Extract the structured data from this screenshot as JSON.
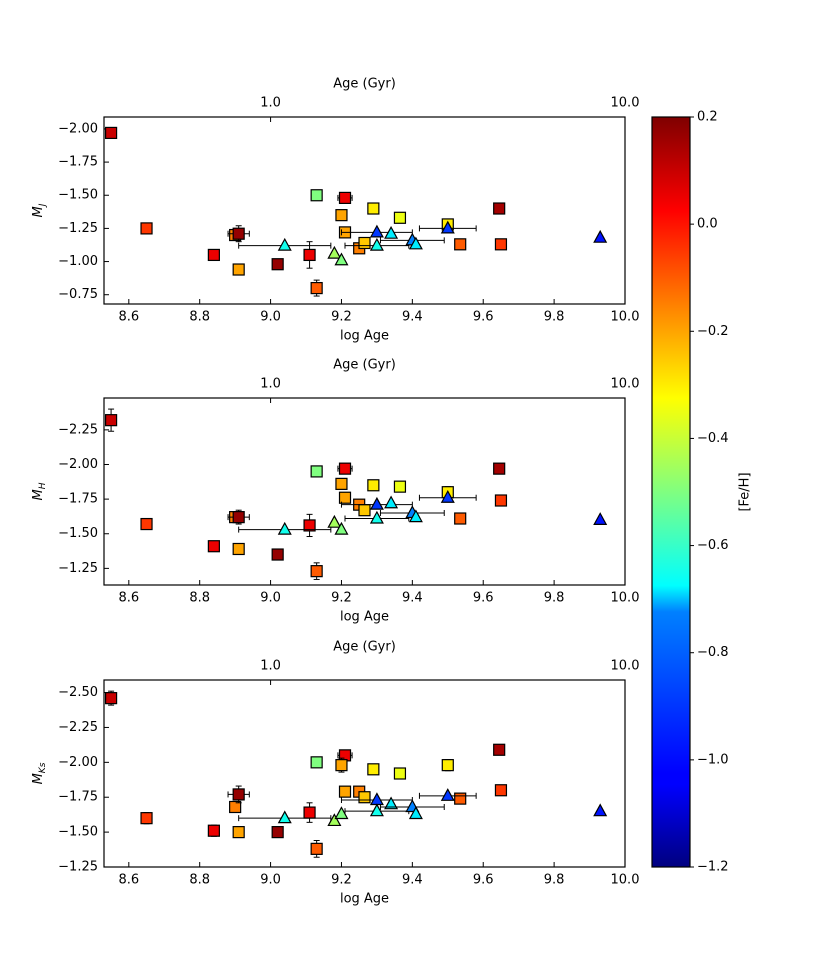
{
  "chart_data": [
    {
      "type": "scatter",
      "xlabel": "log Age",
      "ylabel": {
        "base": "M",
        "sub": "J"
      },
      "x2label": "Age (Gyr)",
      "x2ticks": [
        {
          "value": 1,
          "label": "1.0"
        },
        {
          "value": 10,
          "label": "10.0"
        }
      ],
      "xlim": [
        8.53,
        10.0
      ],
      "xticks": [
        8.6,
        8.8,
        {
          "value": 9,
          "label": "9.0"
        },
        9.2,
        9.4,
        9.6,
        9.8,
        {
          "value": 10,
          "label": "10.0"
        }
      ],
      "ylim": [
        -0.68,
        -2.09
      ],
      "yticks": [
        {
          "value": -2,
          "label": "−2.00"
        },
        {
          "value": -1.75,
          "label": "−1.75"
        },
        {
          "value": -1.5,
          "label": "−1.50"
        },
        {
          "value": -1.25,
          "label": "−1.25"
        },
        {
          "value": -1,
          "label": "−1.00"
        },
        {
          "value": -0.75,
          "label": "−0.75"
        }
      ],
      "series": [
        {
          "marker": "square",
          "x": [
            8.55,
            8.65,
            8.84,
            8.91,
            8.9,
            8.91,
            9.02,
            9.11,
            9.13,
            9.13,
            9.21,
            9.2,
            9.21,
            9.25,
            9.265,
            9.29,
            9.365,
            9.5,
            9.535,
            9.645,
            9.65
          ],
          "values": [
            -1.97,
            -1.25,
            -1.05,
            -0.94,
            -1.2,
            -1.21,
            -0.98,
            -1.05,
            -0.8,
            -1.5,
            -1.48,
            -1.35,
            -1.22,
            -1.1,
            -1.14,
            -1.4,
            -1.33,
            -1.28,
            -1.13,
            -1.4,
            -1.13
          ],
          "c": [
            0.1,
            -0.05,
            0.05,
            -0.2,
            -0.15,
            0.17,
            0.17,
            0.05,
            -0.1,
            -0.5,
            0.05,
            -0.2,
            -0.2,
            -0.15,
            -0.25,
            -0.3,
            -0.35,
            -0.3,
            -0.1,
            0.15,
            -0.05
          ],
          "yerr": [
            0.04,
            0.03,
            0.03,
            null,
            null,
            0.06,
            0.02,
            0.1,
            0.06,
            null,
            0.03,
            null,
            null,
            null,
            null,
            0.02,
            null,
            0.04,
            null,
            null,
            null
          ],
          "xerr": [
            null,
            null,
            null,
            null,
            null,
            0.03,
            null,
            null,
            null,
            null,
            0.02,
            null,
            null,
            null,
            null,
            null,
            null,
            null,
            null,
            null,
            null
          ]
        },
        {
          "marker": "triangle",
          "x": [
            9.04,
            9.18,
            9.2,
            9.3,
            9.3,
            9.34,
            9.4,
            9.41,
            9.5,
            9.93
          ],
          "values": [
            -1.12,
            -1.06,
            -1.01,
            -1.22,
            -1.12,
            -1.21,
            -1.16,
            -1.13,
            -1.25,
            -1.18
          ],
          "c": [
            -0.65,
            -0.45,
            -0.5,
            -0.95,
            -0.65,
            -0.7,
            -0.85,
            -0.7,
            -0.95,
            -1.0
          ],
          "yerr": [
            null,
            null,
            null,
            null,
            null,
            null,
            null,
            null,
            null,
            null
          ],
          "xerr": [
            0.13,
            null,
            null,
            0.1,
            0.09,
            null,
            0.09,
            null,
            0.08,
            null
          ]
        }
      ]
    },
    {
      "type": "scatter",
      "xlabel": "log Age",
      "ylabel": {
        "base": "M",
        "sub": "H"
      },
      "x2label": "Age (Gyr)",
      "x2ticks": [
        {
          "value": 1,
          "label": "1.0"
        },
        {
          "value": 10,
          "label": "10.0"
        }
      ],
      "xlim": [
        8.53,
        10.0
      ],
      "xticks": [
        8.6,
        8.8,
        {
          "value": 9,
          "label": "9.0"
        },
        9.2,
        9.4,
        9.6,
        9.8,
        {
          "value": 10,
          "label": "10.0"
        }
      ],
      "ylim": [
        -1.13,
        -2.48
      ],
      "yticks": [
        {
          "value": -2.25,
          "label": "−2.25"
        },
        {
          "value": -2,
          "label": "−2.00"
        },
        {
          "value": -1.75,
          "label": "−1.75"
        },
        {
          "value": -1.5,
          "label": "−1.50"
        },
        {
          "value": -1.25,
          "label": "−1.25"
        }
      ],
      "series": [
        {
          "marker": "square",
          "x": [
            8.55,
            8.65,
            8.84,
            8.91,
            8.9,
            8.91,
            9.02,
            9.11,
            9.13,
            9.13,
            9.21,
            9.2,
            9.21,
            9.25,
            9.265,
            9.29,
            9.365,
            9.5,
            9.535,
            9.645,
            9.65
          ],
          "values": [
            -2.32,
            -1.57,
            -1.41,
            -1.39,
            -1.62,
            -1.62,
            -1.35,
            -1.56,
            -1.23,
            -1.95,
            -1.97,
            -1.86,
            -1.76,
            -1.71,
            -1.67,
            -1.85,
            -1.84,
            -1.8,
            -1.61,
            -1.97,
            -1.74
          ],
          "c": [
            0.1,
            -0.05,
            0.05,
            -0.2,
            -0.15,
            0.17,
            0.17,
            0.05,
            -0.1,
            -0.5,
            0.05,
            -0.2,
            -0.2,
            -0.15,
            -0.25,
            -0.3,
            -0.35,
            -0.3,
            -0.1,
            0.15,
            -0.05
          ],
          "yerr": [
            0.08,
            0.03,
            0.02,
            null,
            null,
            0.05,
            0.02,
            0.08,
            0.06,
            null,
            0.03,
            null,
            null,
            null,
            null,
            0.02,
            null,
            0.04,
            null,
            null,
            null
          ],
          "xerr": [
            null,
            null,
            null,
            null,
            null,
            0.03,
            null,
            null,
            null,
            null,
            0.02,
            null,
            null,
            null,
            null,
            null,
            null,
            null,
            null,
            null,
            null
          ]
        },
        {
          "marker": "triangle",
          "x": [
            9.04,
            9.18,
            9.2,
            9.3,
            9.3,
            9.34,
            9.4,
            9.41,
            9.5,
            9.93
          ],
          "values": [
            -1.53,
            -1.58,
            -1.53,
            -1.71,
            -1.61,
            -1.72,
            -1.65,
            -1.62,
            -1.76,
            -1.6
          ],
          "c": [
            -0.65,
            -0.45,
            -0.5,
            -0.95,
            -0.65,
            -0.7,
            -0.85,
            -0.7,
            -0.95,
            -1.0
          ],
          "yerr": [
            null,
            null,
            null,
            null,
            null,
            null,
            null,
            null,
            null,
            null
          ],
          "xerr": [
            0.13,
            null,
            null,
            0.1,
            0.09,
            null,
            0.09,
            null,
            0.08,
            null
          ]
        }
      ]
    },
    {
      "type": "scatter",
      "xlabel": "log Age",
      "ylabel": {
        "base": "M",
        "sub": "Ks"
      },
      "x2label": "Age (Gyr)",
      "x2ticks": [
        {
          "value": 1,
          "label": "1.0"
        },
        {
          "value": 10,
          "label": "10.0"
        }
      ],
      "xlim": [
        8.53,
        10.0
      ],
      "xticks": [
        8.6,
        8.8,
        {
          "value": 9,
          "label": "9.0"
        },
        9.2,
        9.4,
        9.6,
        9.8,
        {
          "value": 10,
          "label": "10.0"
        }
      ],
      "ylim": [
        -1.25,
        -2.59
      ],
      "yticks": [
        {
          "value": -2.5,
          "label": "−2.50"
        },
        {
          "value": -2.25,
          "label": "−2.25"
        },
        {
          "value": -2,
          "label": "−2.00"
        },
        {
          "value": -1.75,
          "label": "−1.75"
        },
        {
          "value": -1.5,
          "label": "−1.50"
        },
        {
          "value": -1.25,
          "label": "−1.25"
        }
      ],
      "series": [
        {
          "marker": "square",
          "x": [
            8.55,
            8.65,
            8.84,
            8.91,
            8.9,
            8.91,
            9.02,
            9.11,
            9.13,
            9.13,
            9.21,
            9.2,
            9.21,
            9.25,
            9.265,
            9.29,
            9.365,
            9.5,
            9.535,
            9.645,
            9.65
          ],
          "values": [
            -2.46,
            -1.6,
            -1.51,
            -1.5,
            -1.68,
            -1.77,
            -1.5,
            -1.64,
            -1.38,
            -2.0,
            -2.05,
            -1.98,
            -1.79,
            -1.79,
            -1.75,
            -1.95,
            -1.92,
            -1.98,
            -1.74,
            -2.09,
            -1.8
          ],
          "c": [
            0.1,
            -0.05,
            0.05,
            -0.2,
            -0.15,
            0.17,
            0.17,
            0.05,
            -0.1,
            -0.5,
            0.05,
            -0.2,
            -0.2,
            -0.15,
            -0.25,
            -0.3,
            -0.35,
            -0.3,
            -0.1,
            0.15,
            -0.05
          ],
          "yerr": [
            0.05,
            0.04,
            0.04,
            null,
            null,
            0.06,
            0.02,
            0.07,
            0.06,
            null,
            0.03,
            0.05,
            null,
            null,
            null,
            0.02,
            null,
            0.04,
            null,
            null,
            null
          ],
          "xerr": [
            null,
            null,
            null,
            null,
            null,
            0.03,
            null,
            null,
            null,
            null,
            0.02,
            null,
            null,
            null,
            null,
            null,
            null,
            null,
            null,
            null,
            null
          ]
        },
        {
          "marker": "triangle",
          "x": [
            9.04,
            9.18,
            9.2,
            9.3,
            9.3,
            9.34,
            9.4,
            9.41,
            9.5,
            9.93
          ],
          "values": [
            -1.6,
            -1.58,
            -1.63,
            -1.73,
            -1.65,
            -1.7,
            -1.68,
            -1.63,
            -1.76,
            -1.65
          ],
          "c": [
            -0.65,
            -0.45,
            -0.5,
            -0.95,
            -0.65,
            -0.7,
            -0.85,
            -0.7,
            -0.95,
            -1.0
          ],
          "yerr": [
            null,
            null,
            null,
            null,
            null,
            null,
            null,
            null,
            null,
            null
          ],
          "xerr": [
            0.13,
            null,
            null,
            0.1,
            0.09,
            null,
            0.09,
            null,
            0.08,
            null
          ]
        }
      ]
    },
    {
      "type": "colorbar",
      "label": "[Fe/H]",
      "colormap": "jet",
      "clim": [
        -1.2,
        0.2
      ],
      "ticks": [
        0.2,
        {
          "value": 0,
          "label": "0.0"
        },
        {
          "value": -0.2,
          "label": "−0.2"
        },
        {
          "value": -0.4,
          "label": "−0.4"
        },
        {
          "value": -0.6,
          "label": "−0.6"
        },
        {
          "value": -0.8,
          "label": "−0.8"
        },
        {
          "value": -1,
          "label": "−1.0"
        },
        {
          "value": -1.2,
          "label": "−1.2"
        }
      ]
    }
  ]
}
